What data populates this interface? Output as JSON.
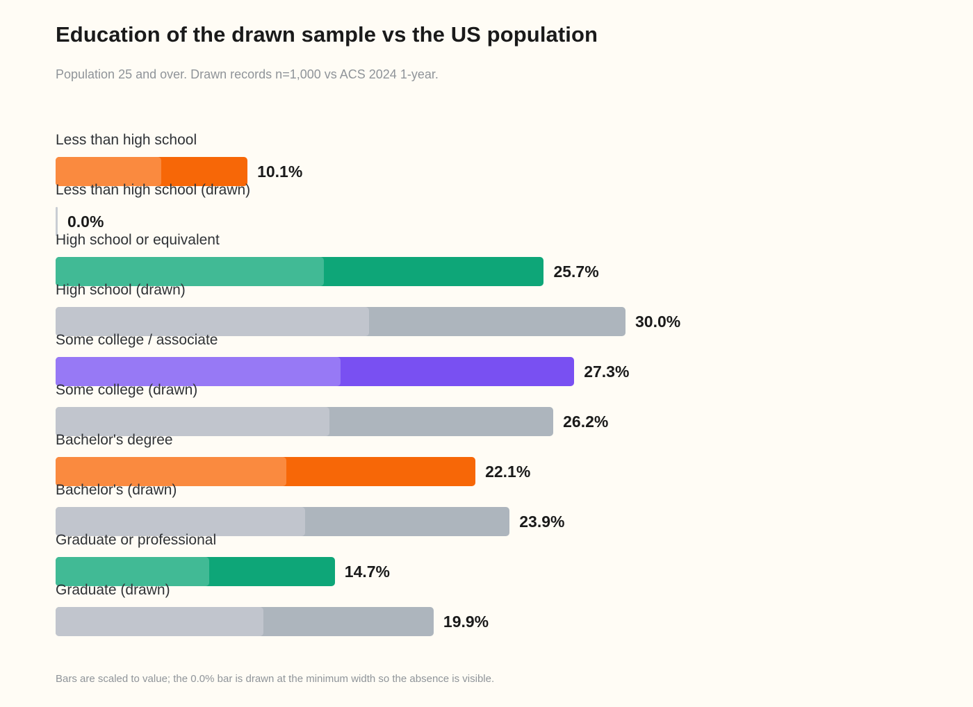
{
  "chart_data": {
    "type": "bar",
    "orientation": "horizontal",
    "title": "Education of the drawn sample vs the US population",
    "subtitle": "Population 25 and over. Drawn records n=1,000 vs ACS 2024 1-year.",
    "footnote": "Bars are scaled to value; the 0.0% bar is drawn at the minimum width so the absence is visible.",
    "value_format": "percent_1dp",
    "xlim": [
      0,
      30.0
    ],
    "grid": false,
    "legend": "none",
    "rows": [
      {
        "label": "Less than high school",
        "value": 10.1,
        "display": "10.1%",
        "color": "#f76707",
        "highlight": "#fa8a3f"
      },
      {
        "label": "Less than high school (drawn)",
        "value": 0.0,
        "display": "0.0%",
        "color": "#adb5bd",
        "highlight": "#c1c5cd"
      },
      {
        "label": "High school or equivalent",
        "value": 25.7,
        "display": "25.7%",
        "color": "#0ea678",
        "highlight": "#41ba95"
      },
      {
        "label": "High school (drawn)",
        "value": 30.0,
        "display": "30.0%",
        "color": "#adb5bd",
        "highlight": "#c1c5cd"
      },
      {
        "label": "Some college / associate",
        "value": 27.3,
        "display": "27.3%",
        "color": "#7950f2",
        "highlight": "#9779f5"
      },
      {
        "label": "Some college (drawn)",
        "value": 26.2,
        "display": "26.2%",
        "color": "#adb5bd",
        "highlight": "#c1c5cd"
      },
      {
        "label": "Bachelor's degree",
        "value": 22.1,
        "display": "22.1%",
        "color": "#f76707",
        "highlight": "#fa8a3f"
      },
      {
        "label": "Bachelor's (drawn)",
        "value": 23.9,
        "display": "23.9%",
        "color": "#adb5bd",
        "highlight": "#c1c5cd"
      },
      {
        "label": "Graduate or professional",
        "value": 14.7,
        "display": "14.7%",
        "color": "#0ea678",
        "highlight": "#41ba95"
      },
      {
        "label": "Graduate (drawn)",
        "value": 19.9,
        "display": "19.9%",
        "color": "#adb5bd",
        "highlight": "#c1c5cd"
      }
    ]
  }
}
